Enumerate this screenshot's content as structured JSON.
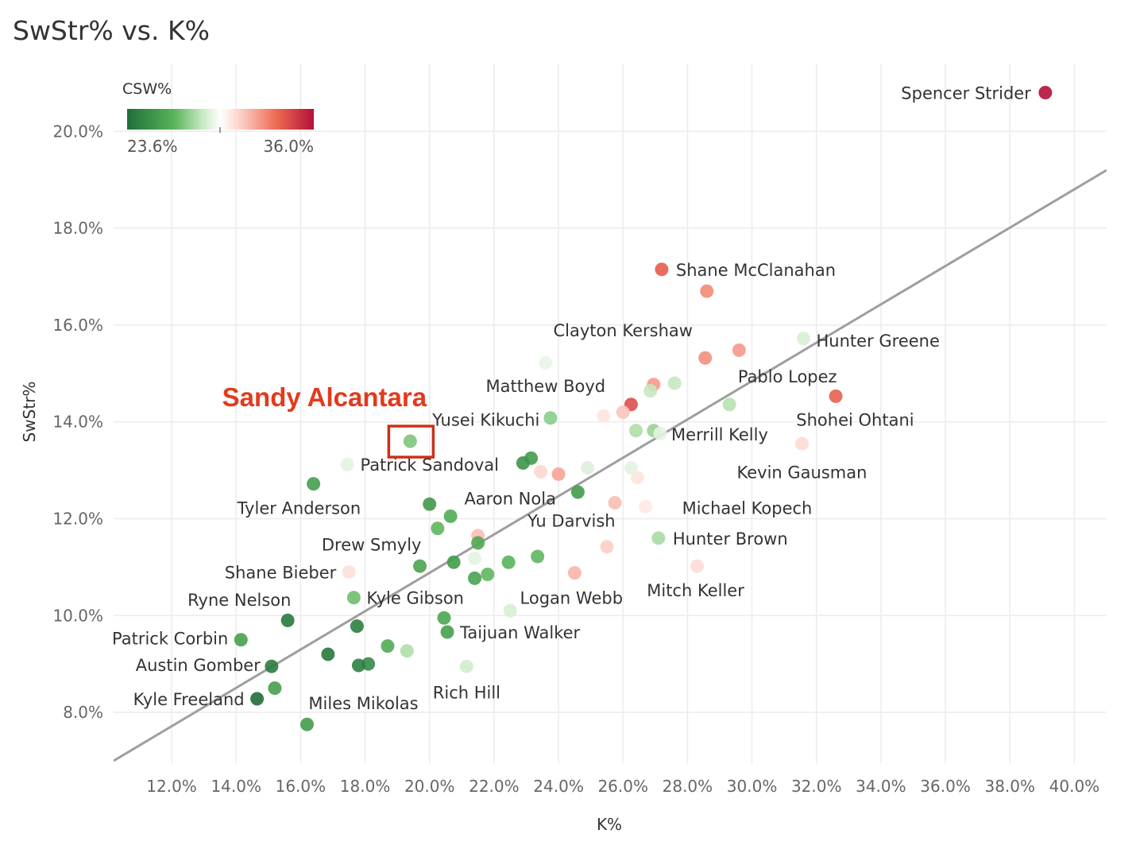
{
  "chart_data": {
    "type": "scatter",
    "title": "SwStr% vs. K%",
    "xlabel": "K%",
    "ylabel": "SwStr%",
    "xlim": [
      10.2,
      41.0
    ],
    "ylim": [
      6.95,
      21.4
    ],
    "x_ticks": [
      "12.0%",
      "14.0%",
      "16.0%",
      "18.0%",
      "20.0%",
      "22.0%",
      "24.0%",
      "26.0%",
      "28.0%",
      "30.0%",
      "32.0%",
      "34.0%",
      "36.0%",
      "38.0%",
      "40.0%"
    ],
    "x_tick_values": [
      12,
      14,
      16,
      18,
      20,
      22,
      24,
      26,
      28,
      30,
      32,
      34,
      36,
      38,
      40
    ],
    "y_ticks": [
      "8.0%",
      "10.0%",
      "12.0%",
      "14.0%",
      "16.0%",
      "18.0%",
      "20.0%"
    ],
    "y_tick_values": [
      8,
      10,
      12,
      14,
      16,
      18,
      20
    ],
    "trendline": {
      "x": [
        10.2,
        41.0
      ],
      "y": [
        7.0,
        19.2
      ]
    },
    "legend": {
      "title": "CSW%",
      "min_label": "23.6%",
      "max_label": "36.0%",
      "position": "top-left"
    },
    "highlight": {
      "label": "Sandy Alcantara",
      "x": 19.4,
      "y": 13.6
    },
    "colors": {
      "low": "#1f6e3a",
      "mid": "#ffffff",
      "high": "#b5103a",
      "highlight": "#d9301c",
      "trend": "#999999",
      "grid": "#ececec"
    },
    "points": [
      {
        "x": 39.1,
        "y": 20.8,
        "c": 1.0
      },
      {
        "x": 27.2,
        "y": 17.15,
        "c": 0.83
      },
      {
        "x": 28.6,
        "y": 16.7,
        "c": 0.74
      },
      {
        "x": 31.6,
        "y": 15.72,
        "c": 0.43
      },
      {
        "x": 29.6,
        "y": 15.48,
        "c": 0.71
      },
      {
        "x": 28.55,
        "y": 15.32,
        "c": 0.73
      },
      {
        "x": 23.6,
        "y": 15.22,
        "c": 0.46
      },
      {
        "x": 27.6,
        "y": 14.8,
        "c": 0.4
      },
      {
        "x": 26.95,
        "y": 14.77,
        "c": 0.71
      },
      {
        "x": 26.85,
        "y": 14.64,
        "c": 0.4
      },
      {
        "x": 32.6,
        "y": 14.53,
        "c": 0.82
      },
      {
        "x": 26.25,
        "y": 14.36,
        "c": 0.86
      },
      {
        "x": 29.3,
        "y": 14.36,
        "c": 0.38
      },
      {
        "x": 26.0,
        "y": 14.2,
        "c": 0.63
      },
      {
        "x": 25.4,
        "y": 14.12,
        "c": 0.56
      },
      {
        "x": 23.75,
        "y": 14.08,
        "c": 0.32
      },
      {
        "x": 26.4,
        "y": 13.82,
        "c": 0.37
      },
      {
        "x": 26.95,
        "y": 13.82,
        "c": 0.34
      },
      {
        "x": 27.15,
        "y": 13.76,
        "c": 0.45
      },
      {
        "x": 19.4,
        "y": 13.6,
        "c": 0.3
      },
      {
        "x": 31.55,
        "y": 13.55,
        "c": 0.58
      },
      {
        "x": 23.15,
        "y": 13.25,
        "c": 0.16
      },
      {
        "x": 22.9,
        "y": 13.15,
        "c": 0.14
      },
      {
        "x": 17.45,
        "y": 13.12,
        "c": 0.45
      },
      {
        "x": 24.9,
        "y": 13.05,
        "c": 0.44
      },
      {
        "x": 26.25,
        "y": 13.05,
        "c": 0.45
      },
      {
        "x": 23.45,
        "y": 12.97,
        "c": 0.59
      },
      {
        "x": 24.0,
        "y": 12.92,
        "c": 0.69
      },
      {
        "x": 26.45,
        "y": 12.85,
        "c": 0.56
      },
      {
        "x": 16.4,
        "y": 12.72,
        "c": 0.17
      },
      {
        "x": 24.6,
        "y": 12.55,
        "c": 0.16
      },
      {
        "x": 20.0,
        "y": 12.3,
        "c": 0.15
      },
      {
        "x": 25.75,
        "y": 12.33,
        "c": 0.64
      },
      {
        "x": 26.7,
        "y": 12.25,
        "c": 0.55
      },
      {
        "x": 20.65,
        "y": 12.05,
        "c": 0.22
      },
      {
        "x": 20.25,
        "y": 11.8,
        "c": 0.26
      },
      {
        "x": 21.5,
        "y": 11.65,
        "c": 0.64
      },
      {
        "x": 21.5,
        "y": 11.5,
        "c": 0.21
      },
      {
        "x": 27.1,
        "y": 11.6,
        "c": 0.36
      },
      {
        "x": 25.5,
        "y": 11.42,
        "c": 0.61
      },
      {
        "x": 23.35,
        "y": 11.22,
        "c": 0.26
      },
      {
        "x": 21.4,
        "y": 11.18,
        "c": 0.45
      },
      {
        "x": 20.75,
        "y": 11.1,
        "c": 0.16
      },
      {
        "x": 22.45,
        "y": 11.1,
        "c": 0.25
      },
      {
        "x": 19.7,
        "y": 11.02,
        "c": 0.19
      },
      {
        "x": 28.3,
        "y": 11.02,
        "c": 0.58
      },
      {
        "x": 17.5,
        "y": 10.9,
        "c": 0.57
      },
      {
        "x": 24.5,
        "y": 10.88,
        "c": 0.66
      },
      {
        "x": 21.8,
        "y": 10.85,
        "c": 0.26
      },
      {
        "x": 21.4,
        "y": 10.77,
        "c": 0.19
      },
      {
        "x": 17.65,
        "y": 10.37,
        "c": 0.28
      },
      {
        "x": 22.5,
        "y": 10.1,
        "c": 0.43
      },
      {
        "x": 15.6,
        "y": 9.9,
        "c": 0.04
      },
      {
        "x": 20.45,
        "y": 9.95,
        "c": 0.2
      },
      {
        "x": 17.75,
        "y": 9.78,
        "c": 0.06
      },
      {
        "x": 20.55,
        "y": 9.66,
        "c": 0.17
      },
      {
        "x": 14.15,
        "y": 9.5,
        "c": 0.18
      },
      {
        "x": 18.7,
        "y": 9.37,
        "c": 0.22
      },
      {
        "x": 19.3,
        "y": 9.27,
        "c": 0.37
      },
      {
        "x": 16.85,
        "y": 9.2,
        "c": 0.04
      },
      {
        "x": 18.1,
        "y": 9.0,
        "c": 0.1
      },
      {
        "x": 17.8,
        "y": 8.97,
        "c": 0.06
      },
      {
        "x": 15.1,
        "y": 8.95,
        "c": 0.05
      },
      {
        "x": 21.15,
        "y": 8.95,
        "c": 0.42
      },
      {
        "x": 15.2,
        "y": 8.5,
        "c": 0.17
      },
      {
        "x": 14.65,
        "y": 8.28,
        "c": 0.0
      },
      {
        "x": 16.2,
        "y": 7.75,
        "c": 0.16
      }
    ],
    "labels": [
      {
        "text": "Spencer Strider",
        "x": 39.1,
        "y": 20.8,
        "anchor": "end",
        "dx": -18,
        "dy": 8
      },
      {
        "text": "Shane McClanahan",
        "x": 27.2,
        "y": 17.15,
        "anchor": "start",
        "dx": 18,
        "dy": 8
      },
      {
        "text": "Clayton Kershaw",
        "x": 26.0,
        "y": 15.9,
        "anchor": "middle",
        "dx": 0,
        "dy": 8
      },
      {
        "text": "Hunter Greene",
        "x": 31.6,
        "y": 15.72,
        "anchor": "start",
        "dx": 16,
        "dy": 10
      },
      {
        "text": "Pablo Lopez",
        "x": 31.1,
        "y": 14.95,
        "anchor": "middle",
        "dx": 0,
        "dy": 8
      },
      {
        "text": "Matthew Boyd",
        "x": 23.6,
        "y": 14.75,
        "anchor": "middle",
        "dx": 0,
        "dy": 8
      },
      {
        "text": "Shohei Ohtani",
        "x": 33.2,
        "y": 14.05,
        "anchor": "middle",
        "dx": 0,
        "dy": 8
      },
      {
        "text": "Yusei Kikuchi",
        "x": 21.75,
        "y": 14.05,
        "anchor": "middle",
        "dx": 0,
        "dy": 8
      },
      {
        "text": "Merrill Kelly",
        "x": 29.0,
        "y": 13.75,
        "anchor": "middle",
        "dx": 0,
        "dy": 8
      },
      {
        "text": "Patrick Sandoval",
        "x": 20.0,
        "y": 13.12,
        "anchor": "middle",
        "dx": 0,
        "dy": 8
      },
      {
        "text": "Kevin Gausman",
        "x": 31.55,
        "y": 12.97,
        "anchor": "middle",
        "dx": 0,
        "dy": 8
      },
      {
        "text": "Aaron Nola",
        "x": 22.5,
        "y": 12.43,
        "anchor": "middle",
        "dx": 0,
        "dy": 8
      },
      {
        "text": "Tyler Anderson",
        "x": 15.95,
        "y": 12.23,
        "anchor": "middle",
        "dx": 0,
        "dy": 8
      },
      {
        "text": "Michael Kopech",
        "x": 29.85,
        "y": 12.23,
        "anchor": "middle",
        "dx": 0,
        "dy": 8
      },
      {
        "text": "Yu Darvish",
        "x": 24.4,
        "y": 11.97,
        "anchor": "middle",
        "dx": 0,
        "dy": 8
      },
      {
        "text": "Hunter Brown",
        "x": 27.1,
        "y": 11.6,
        "anchor": "start",
        "dx": 18,
        "dy": 8
      },
      {
        "text": "Drew Smyly",
        "x": 18.2,
        "y": 11.47,
        "anchor": "middle",
        "dx": 0,
        "dy": 8
      },
      {
        "text": "Shane Bieber",
        "x": 17.5,
        "y": 10.9,
        "anchor": "end",
        "dx": -16,
        "dy": 8
      },
      {
        "text": "Mitch Keller",
        "x": 28.25,
        "y": 10.53,
        "anchor": "middle",
        "dx": 0,
        "dy": 8
      },
      {
        "text": "Ryne Nelson",
        "x": 14.1,
        "y": 10.33,
        "anchor": "middle",
        "dx": 0,
        "dy": 8
      },
      {
        "text": "Kyle Gibson",
        "x": 17.65,
        "y": 10.37,
        "anchor": "start",
        "dx": 16,
        "dy": 8
      },
      {
        "text": "Logan Webb",
        "x": 24.4,
        "y": 10.37,
        "anchor": "middle",
        "dx": 0,
        "dy": 8
      },
      {
        "text": "Taijuan Walker",
        "x": 20.55,
        "y": 9.66,
        "anchor": "start",
        "dx": 16,
        "dy": 8
      },
      {
        "text": "Patrick Corbin",
        "x": 14.15,
        "y": 9.5,
        "anchor": "end",
        "dx": -16,
        "dy": 6
      },
      {
        "text": "Austin Gomber",
        "x": 15.1,
        "y": 8.95,
        "anchor": "end",
        "dx": -14,
        "dy": 6
      },
      {
        "text": "Rich Hill",
        "x": 21.15,
        "y": 8.42,
        "anchor": "middle",
        "dx": 0,
        "dy": 8
      },
      {
        "text": "Kyle Freeland",
        "x": 14.65,
        "y": 8.28,
        "anchor": "end",
        "dx": -16,
        "dy": 8
      },
      {
        "text": "Miles Mikolas",
        "x": 17.95,
        "y": 8.2,
        "anchor": "middle",
        "dx": 0,
        "dy": 8
      }
    ]
  }
}
